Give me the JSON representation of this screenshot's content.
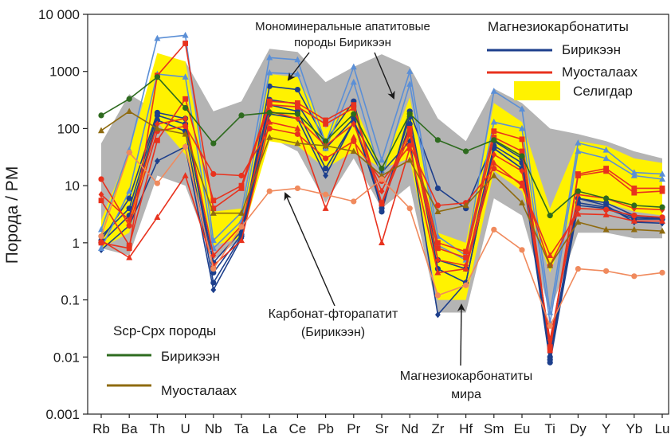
{
  "chart_data": {
    "type": "line",
    "ylabel": "Порода / PM",
    "y_scale": "log",
    "ylim": [
      0.001,
      10000
    ],
    "yticks": [
      {
        "value": 10000,
        "label": "10 000"
      },
      {
        "value": 1000,
        "label": "1000"
      },
      {
        "value": 100,
        "label": "100"
      },
      {
        "value": 10,
        "label": "10"
      },
      {
        "value": 1,
        "label": "1"
      },
      {
        "value": 0.1,
        "label": "0.1"
      },
      {
        "value": 0.01,
        "label": "0.01"
      },
      {
        "value": 0.001,
        "label": "0.001"
      }
    ],
    "categories": [
      "Rb",
      "Ba",
      "Th",
      "U",
      "Nb",
      "Ta",
      "La",
      "Ce",
      "Pb",
      "Pr",
      "Sr",
      "Nd",
      "Zr",
      "Hf",
      "Sm",
      "Eu",
      "Ti",
      "Dy",
      "Y",
      "Yb",
      "Lu"
    ],
    "colors": {
      "grey_field": "#b4b4b4",
      "yellow_field": "#fff200",
      "blue_dark": "#1d3f8c",
      "blue_light": "#5b8fd6",
      "red": "#e8321e",
      "red_square": "#e8321e",
      "green": "#2e6b1f",
      "brown": "#8f6b10",
      "orange": "#f08a5d",
      "annotation": "#1a1a1a"
    },
    "fields": [
      {
        "id": "grey",
        "label": "Магнезиокарбонатиты мира",
        "upper": [
          55,
          400,
          200,
          1500,
          200,
          300,
          2500,
          2200,
          650,
          1200,
          2000,
          1200,
          150,
          60,
          500,
          280,
          100,
          80,
          60,
          40,
          30
        ],
        "lower": [
          0.8,
          0.6,
          15,
          10,
          0.5,
          1.2,
          70,
          40,
          5,
          30,
          4,
          10,
          0.06,
          0.06,
          6,
          3,
          0.06,
          1.5,
          1.5,
          1.2,
          1.2
        ]
      },
      {
        "id": "yellow",
        "label": "Селигдар",
        "upper": [
          2.5,
          40,
          2100,
          1500,
          3.5,
          4,
          900,
          800,
          100,
          280,
          20,
          350,
          1.5,
          1,
          280,
          130,
          4,
          60,
          50,
          30,
          25
        ],
        "lower": [
          0.8,
          1.5,
          130,
          35,
          0.9,
          1.2,
          60,
          50,
          20,
          40,
          20,
          30,
          0.1,
          0.1,
          18,
          8,
          0.3,
          6,
          5,
          3.5,
          3
        ]
      }
    ],
    "series": [
      {
        "name": "Бирикээн",
        "group": "Магнезиокарбонатиты",
        "color": "#1d3f8c",
        "marker": "circle",
        "values": [
          1.1,
          6,
          190,
          150,
          0.3,
          1.4,
          550,
          480,
          60,
          300,
          3.5,
          200,
          9,
          4,
          60,
          30,
          0.01,
          6,
          5,
          3,
          2.7
        ]
      },
      {
        "name": "Бирикээн",
        "group": "Магнезиокарбонатиты",
        "color": "#1d3f8c",
        "marker": "circle",
        "values": [
          1.3,
          4,
          170,
          120,
          0.45,
          1.6,
          320,
          270,
          45,
          150,
          4,
          120,
          0.35,
          0.2,
          45,
          20,
          0.008,
          4.5,
          4,
          2.6,
          2.6
        ]
      },
      {
        "name": "Бирикээн",
        "group": "Магнезиокарбонатиты",
        "color": "#1d3f8c",
        "marker": "diamond",
        "values": [
          0.75,
          2,
          27,
          48,
          0.15,
          1.2,
          180,
          150,
          15,
          130,
          17,
          60,
          0.055,
          0.2,
          45,
          20,
          0.012,
          6,
          4.5,
          2.3,
          2.2
        ]
      },
      {
        "name": "Бирикээн",
        "group": "Магнезиокарбонатиты",
        "color": "#1d3f8c",
        "marker": "circle",
        "values": [
          1.0,
          3,
          140,
          90,
          0.2,
          1.3,
          260,
          200,
          20,
          130,
          4.5,
          160,
          0.5,
          0.35,
          50,
          25,
          0.009,
          5,
          4.2,
          2.8,
          2.6
        ]
      },
      {
        "name": "Бирикээн",
        "group": "Магнезиокарбонатиты",
        "color": "#5b8fd6",
        "marker": "triangle",
        "values": [
          1.7,
          42,
          3800,
          4300,
          1.1,
          3.4,
          1750,
          1600,
          55,
          1200,
          28,
          1000,
          1.3,
          0.6,
          450,
          220,
          0.06,
          56,
          42,
          17,
          16
        ]
      },
      {
        "name": "Бирикээн",
        "group": "Магнезиокарбонатиты",
        "color": "#5b8fd6",
        "marker": "triangle",
        "values": [
          0.8,
          8,
          900,
          800,
          0.8,
          2.4,
          950,
          900,
          45,
          650,
          14,
          600,
          0.9,
          0.5,
          130,
          100,
          0.04,
          40,
          30,
          15,
          13
        ]
      },
      {
        "name": "Муосталаах",
        "group": "Магнезиокарбонатиты",
        "color": "#e8321e",
        "marker": "square",
        "values": [
          5.5,
          0.9,
          62,
          330,
          5.5,
          10,
          300,
          280,
          140,
          260,
          5,
          100,
          1,
          0.7,
          90,
          65,
          0.013,
          15,
          18,
          7.5,
          8
        ]
      },
      {
        "name": "Муосталаах",
        "group": "Магнезиокарбонатиты",
        "color": "#e8321e",
        "marker": "square",
        "values": [
          1.0,
          0.8,
          850,
          3100,
          4,
          9,
          260,
          240,
          120,
          230,
          4.8,
          80,
          0.8,
          0.55,
          70,
          40,
          0.015,
          16,
          20,
          9,
          9
        ]
      },
      {
        "name": "Муосталаах",
        "group": "Магнезиокарбонатиты",
        "color": "#e8321e",
        "marker": "triangle",
        "values": [
          1.1,
          0.55,
          2.8,
          15,
          0.4,
          1.1,
          130,
          100,
          4,
          70,
          1.0,
          45,
          0.3,
          0.35,
          25,
          10,
          0.6,
          3.2,
          3.1,
          2.4,
          2.4
        ]
      },
      {
        "name": "Муосталаах",
        "group": "Магнезиокарбонатиты",
        "color": "#e8321e",
        "marker": "circle",
        "values": [
          13,
          2,
          90,
          110,
          16,
          15,
          100,
          80,
          30,
          60,
          12,
          50,
          4.5,
          5,
          20,
          11,
          0.4,
          4,
          3.8,
          3,
          2.8
        ]
      },
      {
        "name": "Муосталаах",
        "group": "Магнезиокарбонатиты",
        "color": "#e8321e",
        "marker": "diamond",
        "values": [
          7,
          2.5,
          120,
          150,
          0.6,
          2,
          200,
          150,
          50,
          120,
          8,
          90,
          0.5,
          0.4,
          35,
          18,
          0.02,
          7,
          6,
          4,
          3.8
        ]
      },
      {
        "name": "Бирикээн",
        "group": "Scp-Cpx породы",
        "color": "#2e6b1f",
        "marker": "circle",
        "values": [
          170,
          330,
          800,
          230,
          55,
          170,
          190,
          180,
          60,
          180,
          20,
          180,
          63,
          40,
          63,
          33,
          3,
          8,
          6,
          4.5,
          4.2
        ]
      },
      {
        "name": "Муосталаах",
        "group": "Scp-Cpx породы",
        "color": "#8f6b10",
        "marker": "triangle",
        "values": [
          92,
          200,
          100,
          80,
          3.3,
          3.3,
          70,
          55,
          50,
          40,
          15,
          28,
          3.5,
          4.5,
          15,
          5,
          0.4,
          2.3,
          1.7,
          1.7,
          1.6
        ]
      },
      {
        "name": "Карбонат-фторапатит (Бирикээн)",
        "group": "",
        "color": "#f08a5d",
        "marker": "circle",
        "values": [
          1.3,
          38,
          11,
          48,
          0.35,
          1.9,
          8,
          9,
          7,
          5.3,
          13,
          4,
          0.12,
          0.18,
          1.7,
          0.75,
          0.035,
          0.35,
          0.32,
          0.26,
          0.3
        ]
      }
    ],
    "legend": {
      "magnesio_title": "Магнезиокарбонатиты",
      "magnesio_items": [
        {
          "label": "Бирикээн",
          "color": "#1d3f8c",
          "kind": "line"
        },
        {
          "label": "Муосталаах",
          "color": "#e8321e",
          "kind": "line"
        },
        {
          "label": "Селигдар",
          "color": "#fff200",
          "kind": "box"
        }
      ],
      "scp_title": "Scp-Cpx породы",
      "scp_items": [
        {
          "label": "Бирикээн",
          "color": "#2e6b1f"
        },
        {
          "label": "Муосталаах",
          "color": "#8f6b10"
        }
      ]
    },
    "annotations": {
      "apatite_line1": "Мономинеральные апатитовые",
      "apatite_line2": "породы Бирикээн",
      "carbonate_line1": "Карбонат-фторапатит",
      "carbonate_line2": "(Бирикээн)",
      "world_line1": "Магнезиокарбонатиты",
      "world_line2": "мира"
    }
  }
}
